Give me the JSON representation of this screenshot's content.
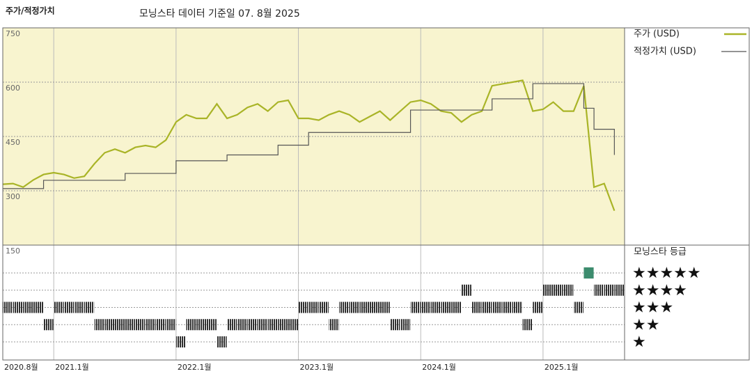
{
  "chart_data": {
    "type": "line",
    "title": "주가/적정가치",
    "subtitle": "모닝스타 데이터 기준일 07. 8월 2025",
    "x": [
      "2020-08",
      "2020-09",
      "2020-10",
      "2020-11",
      "2020-12",
      "2021-01",
      "2021-02",
      "2021-03",
      "2021-04",
      "2021-05",
      "2021-06",
      "2021-07",
      "2021-08",
      "2021-09",
      "2021-10",
      "2021-11",
      "2021-12",
      "2022-01",
      "2022-02",
      "2022-03",
      "2022-04",
      "2022-05",
      "2022-06",
      "2022-07",
      "2022-08",
      "2022-09",
      "2022-10",
      "2022-11",
      "2022-12",
      "2023-01",
      "2023-02",
      "2023-03",
      "2023-04",
      "2023-05",
      "2023-06",
      "2023-07",
      "2023-08",
      "2023-09",
      "2023-10",
      "2023-11",
      "2023-12",
      "2024-01",
      "2024-02",
      "2024-03",
      "2024-04",
      "2024-05",
      "2024-06",
      "2024-07",
      "2024-08",
      "2024-09",
      "2024-10",
      "2024-11",
      "2024-12",
      "2025-01",
      "2025-02",
      "2025-03",
      "2025-04",
      "2025-05",
      "2025-06",
      "2025-07",
      "2025-08"
    ],
    "xlim": [
      "2020-08",
      "2025-09"
    ],
    "xticks": [
      {
        "value": "2020-08",
        "label": "2020.8월"
      },
      {
        "value": "2021-01",
        "label": "2021.1월"
      },
      {
        "value": "2022-01",
        "label": "2022.1월"
      },
      {
        "value": "2023-01",
        "label": "2023.1월"
      },
      {
        "value": "2024-01",
        "label": "2024.1월"
      },
      {
        "value": "2025-01",
        "label": "2025.1월"
      }
    ],
    "ylim": [
      150,
      750
    ],
    "yticks": [
      150,
      300,
      450,
      600,
      750
    ],
    "grid": true,
    "series": [
      {
        "name": "주가 (USD)",
        "color": "#a9b427",
        "step": false,
        "values": [
          318,
          320,
          310,
          330,
          345,
          350,
          345,
          335,
          340,
          375,
          405,
          415,
          405,
          420,
          425,
          420,
          440,
          490,
          510,
          500,
          500,
          540,
          500,
          510,
          530,
          540,
          520,
          545,
          550,
          500,
          500,
          495,
          510,
          520,
          510,
          490,
          505,
          520,
          495,
          520,
          545,
          550,
          540,
          520,
          515,
          490,
          510,
          520,
          590,
          595,
          600,
          605,
          520,
          525,
          545,
          520,
          520,
          590,
          310,
          320,
          245
        ]
      },
      {
        "name": "적정가치 (USD)",
        "color": "#555555",
        "step": true,
        "values": [
          306,
          306,
          306,
          306,
          329,
          329,
          329,
          329,
          329,
          329,
          329,
          329,
          348,
          348,
          348,
          348,
          348,
          383,
          383,
          383,
          383,
          383,
          399,
          399,
          399,
          399,
          399,
          426,
          426,
          426,
          461,
          461,
          461,
          461,
          461,
          461,
          461,
          461,
          461,
          461,
          523,
          523,
          523,
          523,
          523,
          523,
          523,
          523,
          554,
          554,
          554,
          554,
          596,
          596,
          596,
          596,
          596,
          528,
          470,
          470,
          399
        ]
      }
    ],
    "ratings": {
      "name": "모닝스타 등급",
      "color": "#2f2f2f",
      "top_color": "#3d8c6e",
      "values": [
        3,
        3,
        3,
        3,
        2,
        3,
        3,
        3,
        3,
        2,
        2,
        2,
        2,
        2,
        2,
        2,
        2,
        1,
        2,
        2,
        2,
        1,
        2,
        2,
        2,
        2,
        2,
        2,
        2,
        3,
        3,
        3,
        2,
        3,
        3,
        3,
        3,
        3,
        2,
        2,
        3,
        3,
        3,
        3,
        3,
        4,
        3,
        3,
        3,
        3,
        3,
        2,
        3,
        4,
        4,
        4,
        3,
        5,
        4,
        4,
        4
      ],
      "ticks": [
        {
          "value": 5,
          "label": "★★★★★"
        },
        {
          "value": 4,
          "label": "★★★★"
        },
        {
          "value": 3,
          "label": "★★★"
        },
        {
          "value": 2,
          "label": "★★"
        },
        {
          "value": 1,
          "label": "★"
        }
      ]
    }
  }
}
